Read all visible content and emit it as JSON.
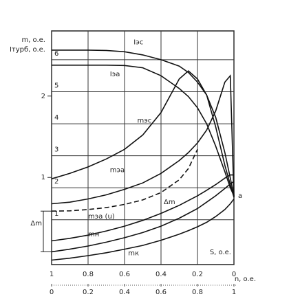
{
  "chart_data": {
    "type": "line",
    "y_label": "m, o.e.",
    "y_label2": "Iтурб, o.e.",
    "x_label": "S, o.e.",
    "x2_label": "n, o.e.",
    "x": [
      1.0,
      0.9,
      0.8,
      0.7,
      0.6,
      0.5,
      0.4,
      0.3,
      0.25,
      0.2,
      0.15,
      0.1,
      0.05,
      0.02,
      0
    ],
    "xlim": [
      1.0,
      0
    ],
    "xticks": [
      1.0,
      0.8,
      0.6,
      0.4,
      0.2,
      0
    ],
    "x2lim": [
      0,
      1.0
    ],
    "x2ticks": [
      0,
      0.2,
      0.4,
      0.6,
      0.8,
      1.0
    ],
    "ylim": [
      -0.4,
      6.9
    ],
    "yticks": [
      1,
      2,
      3,
      4,
      5,
      6
    ],
    "y2lim": [
      -0.07,
      2.8
    ],
    "y2ticks": [
      1,
      2
    ],
    "grid": true,
    "series": [
      {
        "name": "Iэс",
        "color": "#111",
        "values": [
          6.3,
          6.3,
          6.3,
          6.29,
          6.25,
          6.15,
          6.0,
          5.8,
          5.6,
          5.3,
          4.9,
          4.2,
          3.1,
          2.3,
          1.75
        ]
      },
      {
        "name": "Iэа",
        "color": "#111",
        "values": [
          5.83,
          5.83,
          5.83,
          5.83,
          5.82,
          5.75,
          5.5,
          5.1,
          4.85,
          4.5,
          4.0,
          3.3,
          2.5,
          2.0,
          1.75
        ]
      },
      {
        "name": "mэс",
        "color": "#111",
        "values": [
          2.28,
          2.45,
          2.65,
          2.9,
          3.2,
          3.65,
          4.35,
          5.4,
          5.65,
          5.4,
          4.9,
          3.9,
          2.7,
          2.1,
          1.7
        ]
      },
      {
        "name": "mэа",
        "color": "#111",
        "values": [
          1.5,
          1.55,
          1.65,
          1.78,
          1.95,
          2.15,
          2.45,
          2.85,
          3.1,
          3.4,
          3.8,
          4.4,
          5.3,
          5.5,
          1.7
        ]
      },
      {
        "color": "#111",
        "dash": true,
        "values": [
          1.27,
          1.28,
          1.32,
          1.38,
          1.48,
          1.62,
          1.85,
          2.25,
          2.6,
          3.2,
          null,
          null,
          null,
          null,
          null
        ]
      },
      {
        "name": "mэа (u)",
        "color": "#111",
        "values": [
          0.34,
          0.42,
          0.52,
          0.65,
          0.8,
          0.98,
          1.2,
          1.45,
          1.6,
          1.75,
          1.92,
          2.1,
          2.3,
          2.4,
          2.4
        ]
      },
      {
        "name": "mн",
        "color": "#111",
        "values": [
          0.0,
          0.08,
          0.18,
          0.3,
          0.44,
          0.6,
          0.8,
          1.05,
          1.2,
          1.35,
          1.55,
          1.75,
          1.98,
          2.12,
          2.2
        ]
      },
      {
        "name": "mк",
        "color": "#111",
        "values": [
          -0.26,
          -0.2,
          -0.12,
          -0.03,
          0.08,
          0.2,
          0.36,
          0.55,
          0.66,
          0.78,
          0.92,
          1.1,
          1.32,
          1.5,
          1.65
        ]
      }
    ],
    "annotations": [
      "Δm",
      "Δm",
      "a"
    ]
  }
}
